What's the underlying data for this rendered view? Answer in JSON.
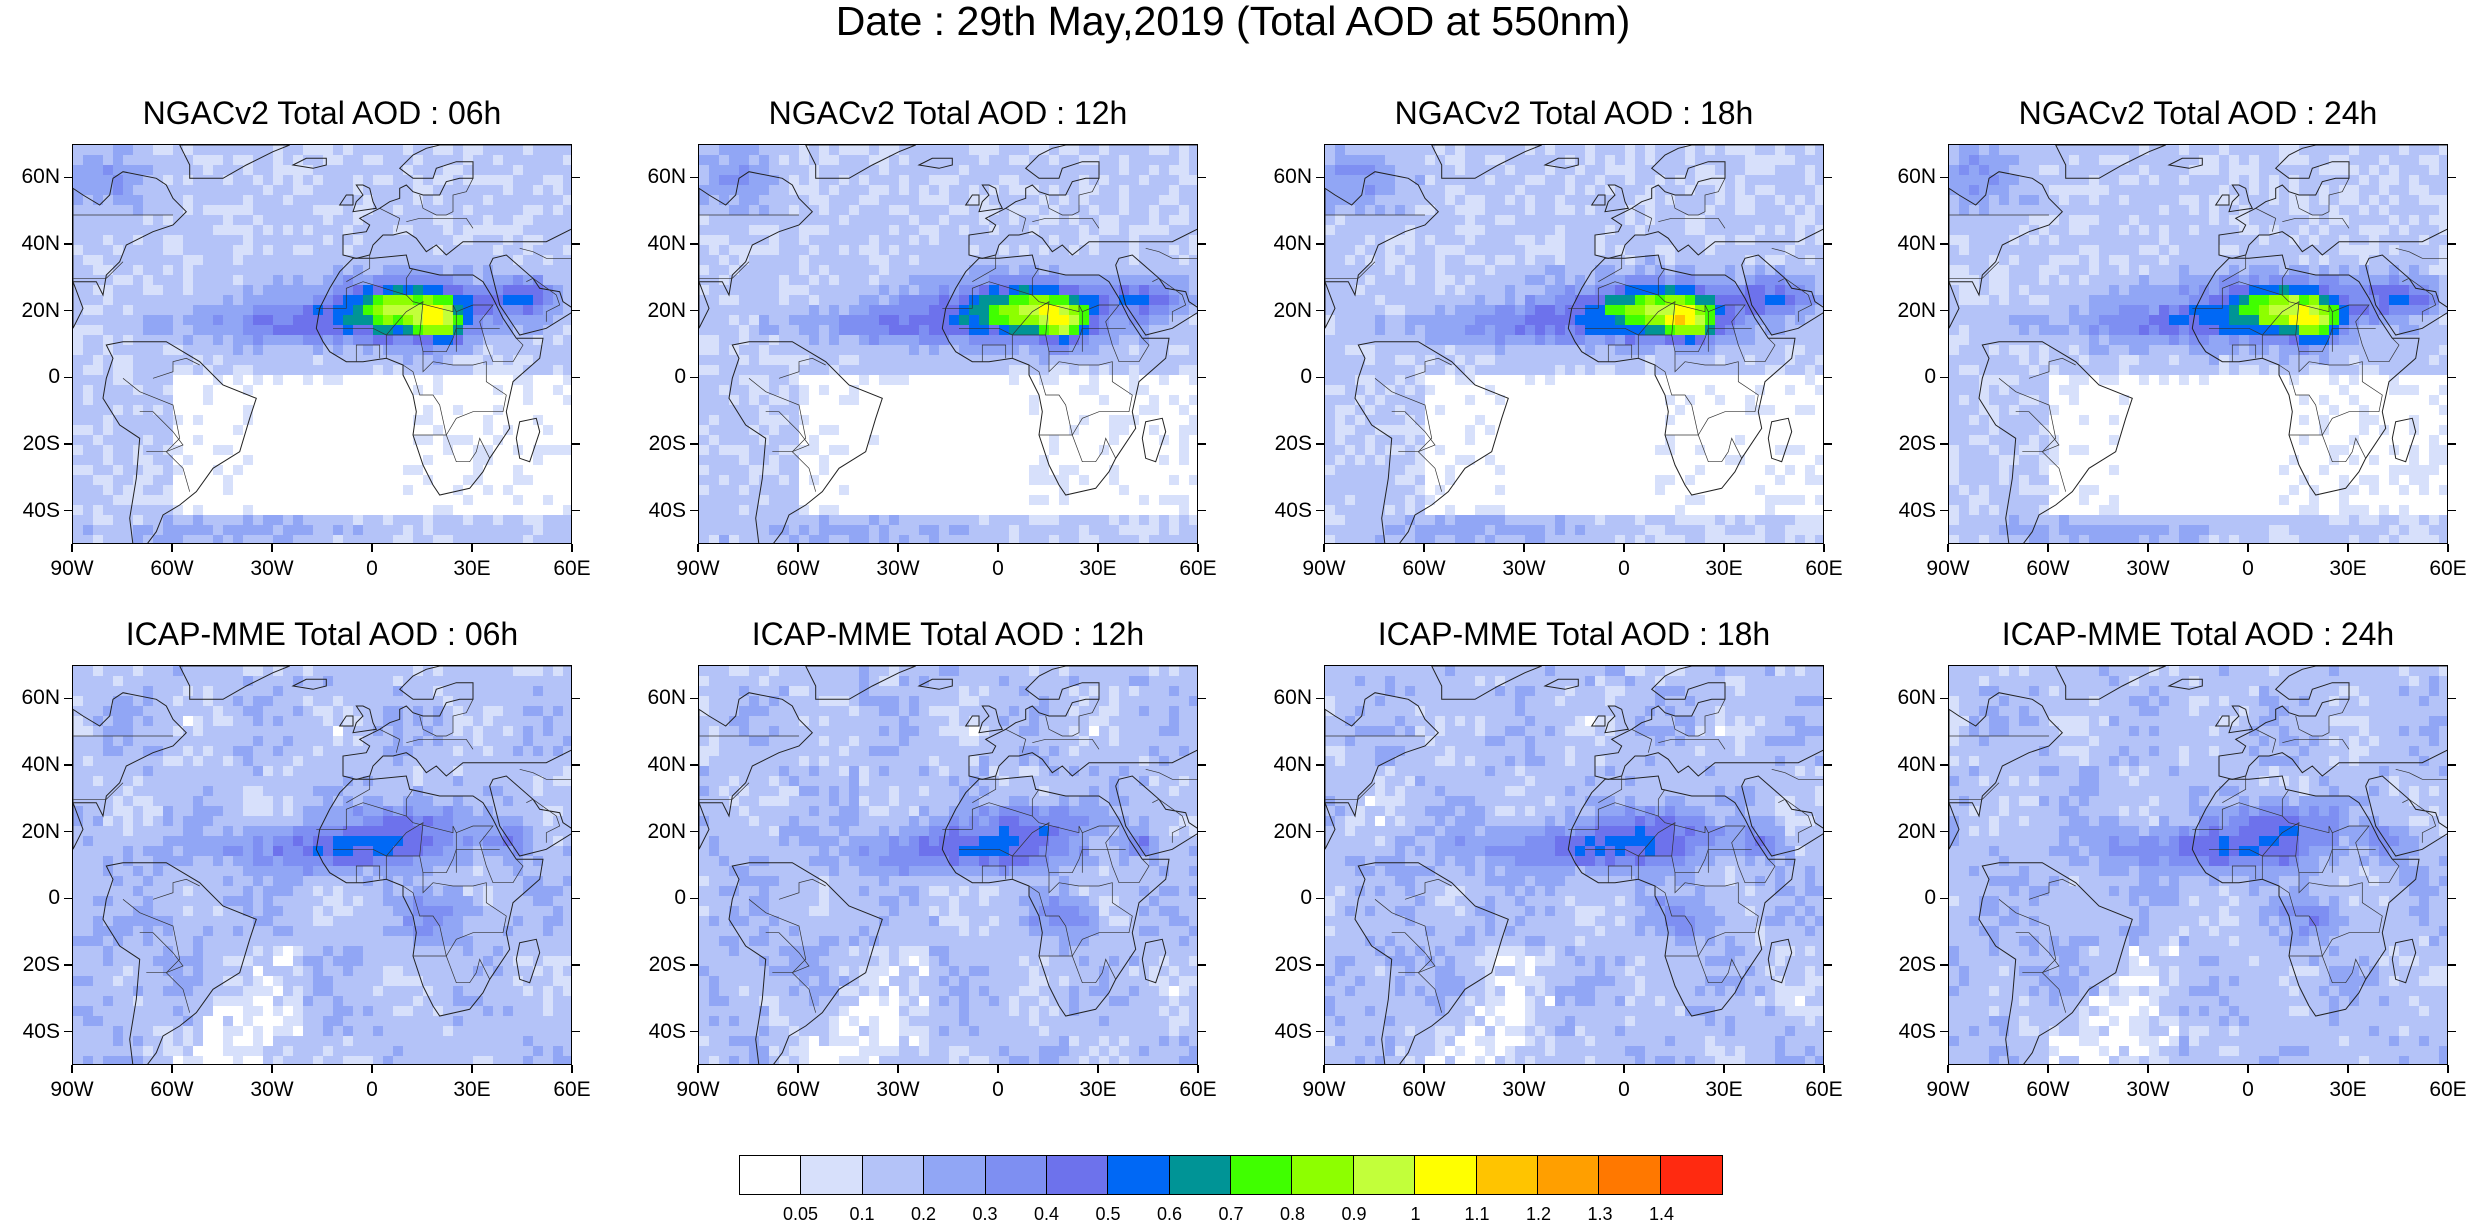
{
  "title": "Date : 29th May,2019 (Total AOD at 550nm)",
  "panels": [
    {
      "title": "NGACv2 Total AOD : 06h",
      "model": "ngac",
      "seed": 11
    },
    {
      "title": "NGACv2 Total AOD : 12h",
      "model": "ngac",
      "seed": 23
    },
    {
      "title": "NGACv2 Total AOD : 18h",
      "model": "ngac",
      "seed": 37
    },
    {
      "title": "NGACv2 Total AOD : 24h",
      "model": "ngac",
      "seed": 41
    },
    {
      "title": "ICAP-MME Total AOD : 06h",
      "model": "icap",
      "seed": 53
    },
    {
      "title": "ICAP-MME Total AOD : 12h",
      "model": "icap",
      "seed": 67
    },
    {
      "title": "ICAP-MME Total AOD : 18h",
      "model": "icap",
      "seed": 71
    },
    {
      "title": "ICAP-MME Total AOD : 24h",
      "model": "icap",
      "seed": 89
    }
  ],
  "map_extent": {
    "lon_min": -90,
    "lon_max": 60,
    "lat_min": -50,
    "lat_max": 70
  },
  "lat_ticks": [
    {
      "value": 60,
      "label": "60N"
    },
    {
      "value": 40,
      "label": "40N"
    },
    {
      "value": 20,
      "label": "20N"
    },
    {
      "value": 0,
      "label": "0"
    },
    {
      "value": -20,
      "label": "20S"
    },
    {
      "value": -40,
      "label": "40S"
    }
  ],
  "lon_ticks": [
    {
      "value": -90,
      "label": "90W"
    },
    {
      "value": -60,
      "label": "60W"
    },
    {
      "value": -30,
      "label": "30W"
    },
    {
      "value": 0,
      "label": "0"
    },
    {
      "value": 30,
      "label": "30E"
    },
    {
      "value": 60,
      "label": "60E"
    }
  ],
  "colorbar": {
    "colors": [
      "#ffffff",
      "#d7e0fb",
      "#b4c3f8",
      "#91a6f5",
      "#7e8ff2",
      "#6d72ec",
      "#0068f5",
      "#009496",
      "#40ff00",
      "#8dff00",
      "#c2ff3a",
      "#ffff00",
      "#ffc400",
      "#ff9f00",
      "#ff7800",
      "#ff2a10"
    ],
    "labels": [
      "0.05",
      "0.1",
      "0.2",
      "0.3",
      "0.4",
      "0.5",
      "0.6",
      "0.7",
      "0.8",
      "0.9",
      "1",
      "1.1",
      "1.2",
      "1.3",
      "1.4"
    ]
  }
}
